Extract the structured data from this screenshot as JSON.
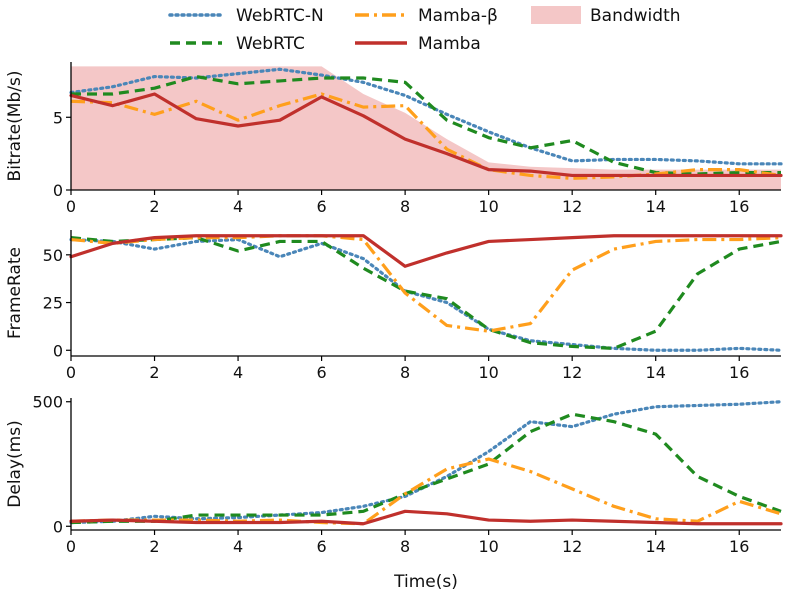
{
  "colors": {
    "webrtc_n": "#4a86b8",
    "webrtc": "#1f8a1f",
    "mamba_beta": "#ff9f1c",
    "mamba": "#c0302c",
    "bandwidth": "#f4c7c7"
  },
  "legend": {
    "entries": [
      {
        "key": "webrtc_n",
        "label": "WebRTC-N"
      },
      {
        "key": "mamba_beta",
        "label": "Mamba-β"
      },
      {
        "key": "bandwidth",
        "label": "Bandwidth"
      },
      {
        "key": "webrtc",
        "label": "WebRTC"
      },
      {
        "key": "mamba",
        "label": "Mamba"
      }
    ]
  },
  "chart_data": {
    "type": "line",
    "xlabel": "Time(s)",
    "xlim": [
      0,
      17
    ],
    "xticks": [
      0,
      2,
      4,
      6,
      8,
      10,
      12,
      14,
      16
    ],
    "x": [
      0,
      1,
      2,
      3,
      4,
      5,
      6,
      7,
      8,
      9,
      10,
      11,
      12,
      13,
      14,
      15,
      16,
      17
    ],
    "panels": [
      {
        "id": "bitrate",
        "ylabel": "Bitrate(Mb/s)",
        "ylim": [
          0,
          8.8
        ],
        "yticks": [
          0,
          5
        ],
        "bandwidth": {
          "x": [
            0,
            6,
            7,
            8,
            9,
            10,
            11,
            12,
            13,
            14,
            15,
            16,
            17
          ],
          "values": [
            8.5,
            8.5,
            6.6,
            5.3,
            3.5,
            1.9,
            1.6,
            1.5,
            1.4,
            1.4,
            1.4,
            1.4,
            1.4
          ]
        },
        "series": [
          {
            "key": "webrtc_n",
            "name": "WebRTC-N",
            "values": [
              6.7,
              7.1,
              7.8,
              7.7,
              8.0,
              8.3,
              7.9,
              7.4,
              6.5,
              5.2,
              4.0,
              2.9,
              2.0,
              2.1,
              2.1,
              2.0,
              1.8,
              1.8
            ]
          },
          {
            "key": "webrtc",
            "name": "WebRTC",
            "values": [
              6.6,
              6.6,
              7.0,
              7.8,
              7.3,
              7.5,
              7.7,
              7.7,
              7.4,
              4.8,
              3.6,
              2.9,
              3.4,
              1.9,
              1.2,
              1.1,
              1.2,
              1.2
            ]
          },
          {
            "key": "mamba_beta",
            "name": "Mamba-β",
            "values": [
              6.1,
              6.0,
              5.2,
              6.1,
              4.8,
              5.8,
              6.6,
              5.7,
              5.8,
              2.8,
              1.4,
              1.0,
              0.8,
              0.9,
              1.1,
              1.4,
              1.4,
              1.0
            ]
          },
          {
            "key": "mamba",
            "name": "Mamba",
            "values": [
              6.5,
              5.8,
              6.6,
              4.9,
              4.4,
              4.8,
              6.4,
              5.1,
              3.5,
              2.5,
              1.4,
              1.3,
              1.0,
              1.0,
              1.0,
              1.0,
              1.0,
              1.0
            ]
          }
        ]
      },
      {
        "id": "framerate",
        "ylabel": "FrameRate",
        "ylim": [
          -3,
          63
        ],
        "yticks": [
          0,
          25,
          50
        ],
        "series": [
          {
            "key": "webrtc_n",
            "name": "WebRTC-N",
            "values": [
              58,
              57,
              53,
              57,
              58,
              49,
              56,
              48,
              31,
              25,
              11,
              5,
              3,
              1,
              0,
              0,
              1,
              0
            ]
          },
          {
            "key": "webrtc",
            "name": "WebRTC",
            "values": [
              59,
              57,
              58,
              59,
              52,
              57,
              57,
              43,
              31,
              27,
              11,
              4,
              2,
              1,
              10,
              40,
              53,
              57
            ]
          },
          {
            "key": "mamba_beta",
            "name": "Mamba-β",
            "values": [
              58,
              56,
              58,
              59,
              59,
              60,
              60,
              58,
              30,
              13,
              10,
              14,
              42,
              53,
              57,
              58,
              58,
              59
            ]
          },
          {
            "key": "mamba",
            "name": "Mamba",
            "values": [
              49,
              56,
              59,
              60,
              60,
              60,
              60,
              60,
              44,
              51,
              57,
              58,
              59,
              60,
              60,
              60,
              60,
              60
            ]
          }
        ]
      },
      {
        "id": "delay",
        "ylabel": "Delay(ms)",
        "ylim": [
          -15,
          515
        ],
        "yticks": [
          0,
          500
        ],
        "series": [
          {
            "key": "webrtc_n",
            "name": "WebRTC-N",
            "values": [
              15,
              20,
              40,
              30,
              35,
              45,
              55,
              80,
              120,
              200,
              300,
              420,
              400,
              450,
              480,
              485,
              490,
              500
            ]
          },
          {
            "key": "webrtc",
            "name": "WebRTC",
            "values": [
              15,
              20,
              20,
              45,
              45,
              45,
              45,
              60,
              130,
              190,
              250,
              380,
              450,
              420,
              370,
              200,
              120,
              60
            ]
          },
          {
            "key": "mamba_beta",
            "name": "Mamba-β",
            "values": [
              20,
              25,
              25,
              25,
              20,
              25,
              15,
              10,
              130,
              230,
              270,
              220,
              150,
              80,
              30,
              20,
              100,
              50
            ]
          },
          {
            "key": "mamba",
            "name": "Mamba",
            "values": [
              20,
              25,
              20,
              15,
              15,
              15,
              20,
              10,
              60,
              50,
              25,
              20,
              25,
              20,
              15,
              10,
              10,
              10
            ]
          }
        ]
      }
    ]
  }
}
